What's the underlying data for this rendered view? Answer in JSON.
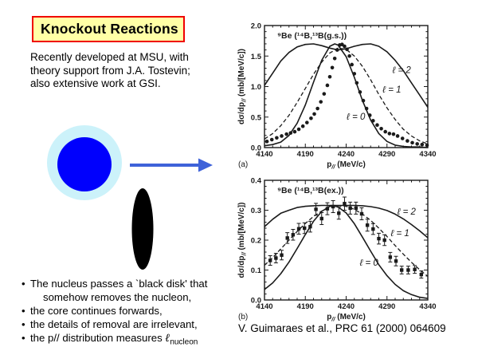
{
  "slide": {
    "title": "Knockout Reactions",
    "intro": "Recently developed at MSU, with\ntheory support from J.A. Tostevin;\nalso extensive work at GSI.",
    "citation": "V. Guimaraes et al., PRC 61 (2000) 064609",
    "title_box": {
      "bg": "#ffffa6",
      "border": "#f00000"
    }
  },
  "bullets": {
    "lines": [
      {
        "marker": "•",
        "text": "The nucleus passes a `black disk' that"
      },
      {
        "marker": "",
        "text": "somehow removes the nucleon,",
        "indent": true
      },
      {
        "marker": "•",
        "text": "the core continues forwards,"
      },
      {
        "marker": "•",
        "text": "the details of removal are irrelevant,"
      },
      {
        "marker": "•",
        "text": "the p// distribution measures ",
        "symbol": "ℓ",
        "symbol_sub": "nucleon"
      }
    ]
  },
  "diagram": {
    "halo_color": "#ccf2fa",
    "core_color": "#0000fd",
    "arrow_color": "#3e62d9",
    "disk_color": "#000000"
  },
  "chart_data": [
    {
      "type": "line",
      "panel": "(a)",
      "title": "⁹Be (¹⁴B,¹³B(g.s.))",
      "xlabel": {
        "base": "p",
        "sub": "//",
        "rest": " (MeV/c)"
      },
      "ylabel": {
        "base": "dσ/dp",
        "sub": "//",
        "rest": " (mb/[MeV/c])"
      },
      "xlim": [
        4140,
        4340
      ],
      "ylim": [
        0.0,
        2.0
      ],
      "xticks": [
        4140,
        4190,
        4240,
        4290,
        4340
      ],
      "yticks": [
        "0.0",
        "0.5",
        "1.0",
        "1.5",
        "2.0"
      ],
      "x_minor": 10,
      "y_minor": 0.1,
      "grid": false,
      "series": [
        {
          "name": "l2",
          "label": "ℓ = 2",
          "label_pos": {
            "x": 4308,
            "y": 1.22
          },
          "style": "solid",
          "x": [
            4140,
            4150,
            4160,
            4170,
            4180,
            4190,
            4200,
            4210,
            4220,
            4230,
            4240,
            4250,
            4260,
            4270,
            4280,
            4290,
            4300,
            4310,
            4320,
            4330,
            4340
          ],
          "y": [
            1.02,
            1.22,
            1.42,
            1.56,
            1.65,
            1.69,
            1.7,
            1.67,
            1.63,
            1.6,
            1.62,
            1.66,
            1.69,
            1.7,
            1.66,
            1.57,
            1.43,
            1.26,
            1.06,
            0.86,
            0.66
          ]
        },
        {
          "name": "l1",
          "label": "ℓ = 1",
          "label_pos": {
            "x": 4296,
            "y": 0.9
          },
          "style": "dashed",
          "x": [
            4140,
            4150,
            4160,
            4170,
            4180,
            4190,
            4200,
            4210,
            4220,
            4230,
            4240,
            4250,
            4260,
            4270,
            4280,
            4290,
            4300,
            4310,
            4320,
            4330,
            4340
          ],
          "y": [
            0.14,
            0.23,
            0.36,
            0.53,
            0.74,
            0.97,
            1.2,
            1.4,
            1.55,
            1.63,
            1.61,
            1.5,
            1.33,
            1.11,
            0.87,
            0.65,
            0.46,
            0.3,
            0.19,
            0.11,
            0.06
          ]
        },
        {
          "name": "l0",
          "label": "ℓ = 0",
          "label_pos": {
            "x": 4252,
            "y": 0.46
          },
          "style": "solid",
          "x": [
            4140,
            4150,
            4160,
            4170,
            4180,
            4190,
            4200,
            4210,
            4220,
            4226,
            4230,
            4240,
            4250,
            4260,
            4270,
            4280,
            4290,
            4300,
            4310,
            4320,
            4330,
            4340
          ],
          "y": [
            0.03,
            0.05,
            0.09,
            0.2,
            0.4,
            0.7,
            1.07,
            1.43,
            1.66,
            1.7,
            1.68,
            1.49,
            1.15,
            0.77,
            0.45,
            0.23,
            0.1,
            0.04,
            0.02,
            0.01,
            0.01,
            0.0
          ]
        }
      ],
      "points": {
        "marker": "circle",
        "x": [
          4143,
          4149,
          4155,
          4161,
          4167,
          4172,
          4177,
          4182,
          4187,
          4192,
          4197,
          4201,
          4205,
          4209,
          4213,
          4217,
          4220,
          4223,
          4226,
          4229,
          4232,
          4235,
          4238,
          4241,
          4244,
          4247,
          4250,
          4253,
          4257,
          4261,
          4265,
          4269,
          4273,
          4278,
          4283,
          4288,
          4293,
          4298,
          4303,
          4309,
          4315,
          4321,
          4327,
          4333,
          4339
        ],
        "y": [
          0.1,
          0.13,
          0.16,
          0.19,
          0.22,
          0.24,
          0.26,
          0.3,
          0.35,
          0.41,
          0.48,
          0.55,
          0.64,
          0.75,
          0.88,
          1.02,
          1.16,
          1.31,
          1.46,
          1.6,
          1.68,
          1.69,
          1.66,
          1.61,
          1.5,
          1.36,
          1.21,
          1.06,
          0.91,
          0.77,
          0.64,
          0.53,
          0.44,
          0.37,
          0.31,
          0.26,
          0.23,
          0.22,
          0.19,
          0.15,
          0.11,
          0.08,
          0.06,
          0.05,
          0.04
        ]
      }
    },
    {
      "type": "line",
      "panel": "(b)",
      "title": "⁹Be (¹⁴B,¹³B(ex.))",
      "xlabel": {
        "base": "p",
        "sub": "//",
        "rest": " (MeV/c)"
      },
      "ylabel": {
        "base": "dσ/dp",
        "sub": "//",
        "rest": " (mb/[MeV/c])"
      },
      "xlim": [
        4140,
        4340
      ],
      "ylim": [
        0.0,
        0.4
      ],
      "xticks": [
        4140,
        4190,
        4240,
        4290,
        4340
      ],
      "yticks": [
        "0.0",
        "0.1",
        "0.2",
        "0.3",
        "0.4"
      ],
      "x_minor": 10,
      "y_minor": 0.02,
      "grid": false,
      "series": [
        {
          "name": "l2",
          "label": "ℓ = 2",
          "label_pos": {
            "x": 4314,
            "y": 0.285
          },
          "style": "solid",
          "x": [
            4140,
            4150,
            4160,
            4170,
            4180,
            4190,
            4200,
            4210,
            4220,
            4230,
            4240,
            4250,
            4260,
            4270,
            4280,
            4290,
            4300,
            4310,
            4320,
            4330,
            4340
          ],
          "y": [
            0.245,
            0.27,
            0.29,
            0.3,
            0.309,
            0.313,
            0.315,
            0.316,
            0.316,
            0.316,
            0.316,
            0.316,
            0.315,
            0.312,
            0.307,
            0.299,
            0.287,
            0.271,
            0.252,
            0.231,
            0.208
          ]
        },
        {
          "name": "l1",
          "label": "ℓ = 1",
          "label_pos": {
            "x": 4306,
            "y": 0.213
          },
          "style": "dashed",
          "x": [
            4140,
            4150,
            4160,
            4170,
            4180,
            4190,
            4200,
            4210,
            4220,
            4230,
            4240,
            4250,
            4260,
            4270,
            4280,
            4290,
            4300,
            4310,
            4320,
            4330,
            4340
          ],
          "y": [
            0.116,
            0.142,
            0.171,
            0.2,
            0.229,
            0.256,
            0.279,
            0.297,
            0.31,
            0.315,
            0.313,
            0.303,
            0.287,
            0.266,
            0.24,
            0.212,
            0.182,
            0.153,
            0.126,
            0.101,
            0.079
          ]
        },
        {
          "name": "l0",
          "label": "ℓ = 0",
          "label_pos": {
            "x": 4268,
            "y": 0.115
          },
          "style": "solid",
          "x": [
            4140,
            4150,
            4160,
            4170,
            4180,
            4190,
            4200,
            4210,
            4220,
            4224,
            4230,
            4240,
            4250,
            4260,
            4270,
            4280,
            4290,
            4300,
            4310,
            4320,
            4330,
            4340
          ],
          "y": [
            0.035,
            0.057,
            0.088,
            0.127,
            0.172,
            0.219,
            0.263,
            0.296,
            0.313,
            0.315,
            0.311,
            0.291,
            0.255,
            0.21,
            0.163,
            0.118,
            0.081,
            0.052,
            0.031,
            0.018,
            0.009,
            0.005
          ]
        }
      ],
      "points": {
        "marker": "square",
        "x": [
          4147,
          4154,
          4161,
          4168,
          4175,
          4182,
          4189,
          4196,
          4203,
          4210,
          4217,
          4224,
          4231,
          4238,
          4245,
          4252,
          4259,
          4266,
          4273,
          4280,
          4287,
          4294,
          4301,
          4308,
          4316,
          4324,
          4332
        ],
        "y": [
          0.132,
          0.14,
          0.15,
          0.207,
          0.218,
          0.238,
          0.24,
          0.245,
          0.303,
          0.272,
          0.305,
          0.312,
          0.29,
          0.322,
          0.307,
          0.307,
          0.288,
          0.25,
          0.237,
          0.205,
          0.2,
          0.143,
          0.13,
          0.1,
          0.1,
          0.102,
          0.085
        ],
        "err": [
          0.016,
          0.016,
          0.016,
          0.018,
          0.018,
          0.018,
          0.018,
          0.018,
          0.02,
          0.02,
          0.02,
          0.02,
          0.02,
          0.022,
          0.02,
          0.02,
          0.02,
          0.02,
          0.018,
          0.018,
          0.018,
          0.016,
          0.016,
          0.013,
          0.013,
          0.013,
          0.012
        ]
      }
    }
  ]
}
